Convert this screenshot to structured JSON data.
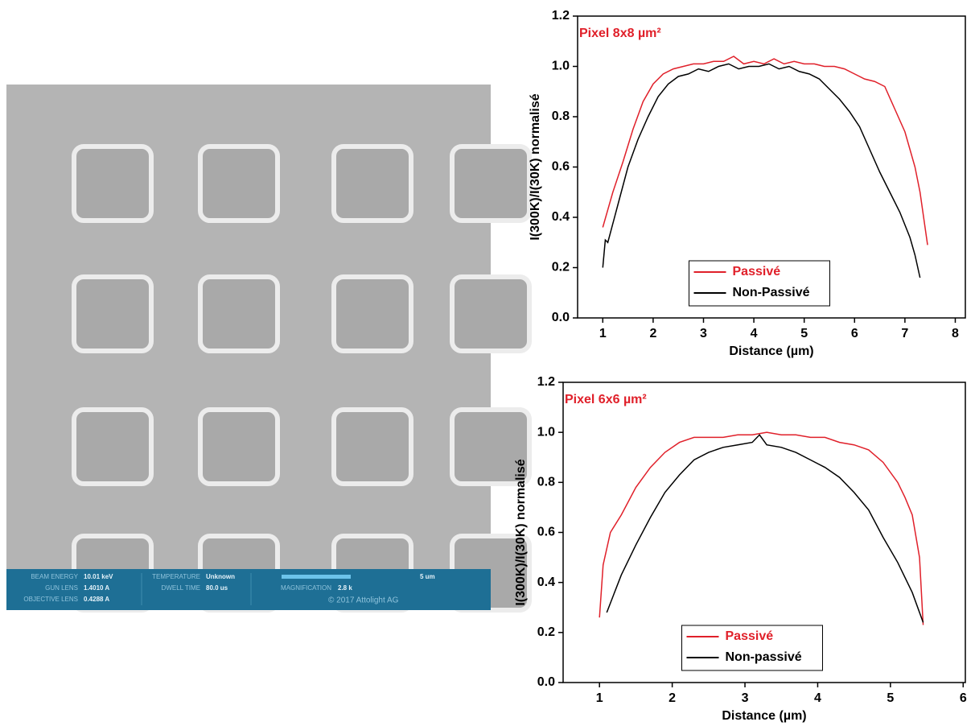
{
  "image": {
    "info": [
      {
        "label": "BEAM ENERGY",
        "value": "10.01 keV"
      },
      {
        "label": "GUN LENS",
        "value": "1.4010 A"
      },
      {
        "label": "OBJECTIVE LENS",
        "value": "0.4288 A"
      },
      {
        "label": "TEMPERATURE",
        "value": "Unknown"
      },
      {
        "label": "DWELL TIME",
        "value": "80.0 us"
      },
      {
        "label": "MAGNIFICATION",
        "value": "2.8 k"
      }
    ],
    "scale_bar": "5 um",
    "copyright": "© 2017 Attolight AG"
  },
  "chart_data": [
    {
      "type": "line",
      "annotation": "Pixel 8x8 µm²",
      "annotation_color": "#e0202a",
      "x_label": "Distance (µm)",
      "y_label": "I(300K)/I(30K) normalisé",
      "xlim": [
        0.5,
        8.2
      ],
      "xticks": [
        1,
        2,
        3,
        4,
        5,
        6,
        7,
        8
      ],
      "ylim": [
        0,
        1.2
      ],
      "yticks": [
        {
          "value": 0,
          "label": "0.0"
        },
        0.2,
        0.4,
        0.6,
        0.8,
        {
          "value": 1,
          "label": "1.0"
        },
        1.2
      ],
      "legend_position": "lower center",
      "series": [
        {
          "name": "Passivé",
          "color": "#e0202a",
          "x": [
            1.0,
            1.2,
            1.4,
            1.6,
            1.8,
            2.0,
            2.2,
            2.4,
            2.6,
            2.8,
            3.0,
            3.2,
            3.4,
            3.6,
            3.8,
            4.0,
            4.2,
            4.4,
            4.6,
            4.8,
            5.0,
            5.2,
            5.4,
            5.6,
            5.8,
            6.0,
            6.2,
            6.4,
            6.6,
            6.8,
            7.0,
            7.2,
            7.3,
            7.45
          ],
          "values": [
            0.36,
            0.5,
            0.62,
            0.75,
            0.86,
            0.93,
            0.97,
            0.99,
            1.0,
            1.01,
            1.01,
            1.02,
            1.02,
            1.04,
            1.01,
            1.02,
            1.01,
            1.03,
            1.01,
            1.02,
            1.01,
            1.01,
            1.0,
            1.0,
            0.99,
            0.97,
            0.95,
            0.94,
            0.92,
            0.83,
            0.74,
            0.6,
            0.5,
            0.29
          ]
        },
        {
          "name": "Non-Passivé",
          "color": "#000000",
          "x": [
            1.0,
            1.05,
            1.1,
            1.3,
            1.5,
            1.7,
            1.9,
            2.1,
            2.3,
            2.5,
            2.7,
            2.9,
            3.1,
            3.3,
            3.5,
            3.7,
            3.9,
            4.1,
            4.3,
            4.5,
            4.7,
            4.9,
            5.1,
            5.3,
            5.5,
            5.7,
            5.9,
            6.1,
            6.3,
            6.5,
            6.7,
            6.9,
            7.1,
            7.2,
            7.3
          ],
          "values": [
            0.2,
            0.31,
            0.3,
            0.45,
            0.6,
            0.71,
            0.8,
            0.88,
            0.93,
            0.96,
            0.97,
            0.99,
            0.98,
            1.0,
            1.01,
            0.99,
            1.0,
            1.0,
            1.01,
            0.99,
            1.0,
            0.98,
            0.97,
            0.95,
            0.91,
            0.87,
            0.82,
            0.76,
            0.67,
            0.58,
            0.5,
            0.42,
            0.32,
            0.25,
            0.16
          ]
        }
      ]
    },
    {
      "type": "line",
      "annotation": "Pixel 6x6 µm²",
      "annotation_color": "#e0202a",
      "x_label": "Distance (µm)",
      "y_label": "I(300K)/I(30K) normalisé",
      "xlim": [
        0.5,
        6.03
      ],
      "xticks": [
        1,
        2,
        3,
        4,
        5,
        6
      ],
      "ylim": [
        0,
        1.2
      ],
      "yticks": [
        {
          "value": 0,
          "label": "0.0"
        },
        0.2,
        0.4,
        0.6,
        0.8,
        {
          "value": 1,
          "label": "1.0"
        },
        1.2
      ],
      "legend_position": "lower center",
      "series": [
        {
          "name": "Passivé",
          "color": "#e0202a",
          "x": [
            1.0,
            1.05,
            1.15,
            1.3,
            1.5,
            1.7,
            1.9,
            2.1,
            2.3,
            2.5,
            2.7,
            2.9,
            3.1,
            3.3,
            3.5,
            3.7,
            3.9,
            4.1,
            4.3,
            4.5,
            4.7,
            4.9,
            5.1,
            5.2,
            5.3,
            5.4,
            5.45
          ],
          "values": [
            0.26,
            0.47,
            0.6,
            0.67,
            0.78,
            0.86,
            0.92,
            0.96,
            0.98,
            0.98,
            0.98,
            0.99,
            0.99,
            1.0,
            0.99,
            0.99,
            0.98,
            0.98,
            0.96,
            0.95,
            0.93,
            0.88,
            0.8,
            0.74,
            0.67,
            0.5,
            0.23
          ]
        },
        {
          "name": "Non-passivé",
          "color": "#000000",
          "x": [
            1.1,
            1.3,
            1.5,
            1.7,
            1.9,
            2.1,
            2.3,
            2.5,
            2.7,
            2.9,
            3.1,
            3.2,
            3.3,
            3.5,
            3.7,
            3.9,
            4.1,
            4.3,
            4.5,
            4.7,
            4.9,
            5.1,
            5.3,
            5.45
          ],
          "values": [
            0.28,
            0.43,
            0.55,
            0.66,
            0.76,
            0.83,
            0.89,
            0.92,
            0.94,
            0.95,
            0.96,
            0.99,
            0.95,
            0.94,
            0.92,
            0.89,
            0.86,
            0.82,
            0.76,
            0.69,
            0.58,
            0.48,
            0.36,
            0.24
          ]
        }
      ]
    }
  ]
}
